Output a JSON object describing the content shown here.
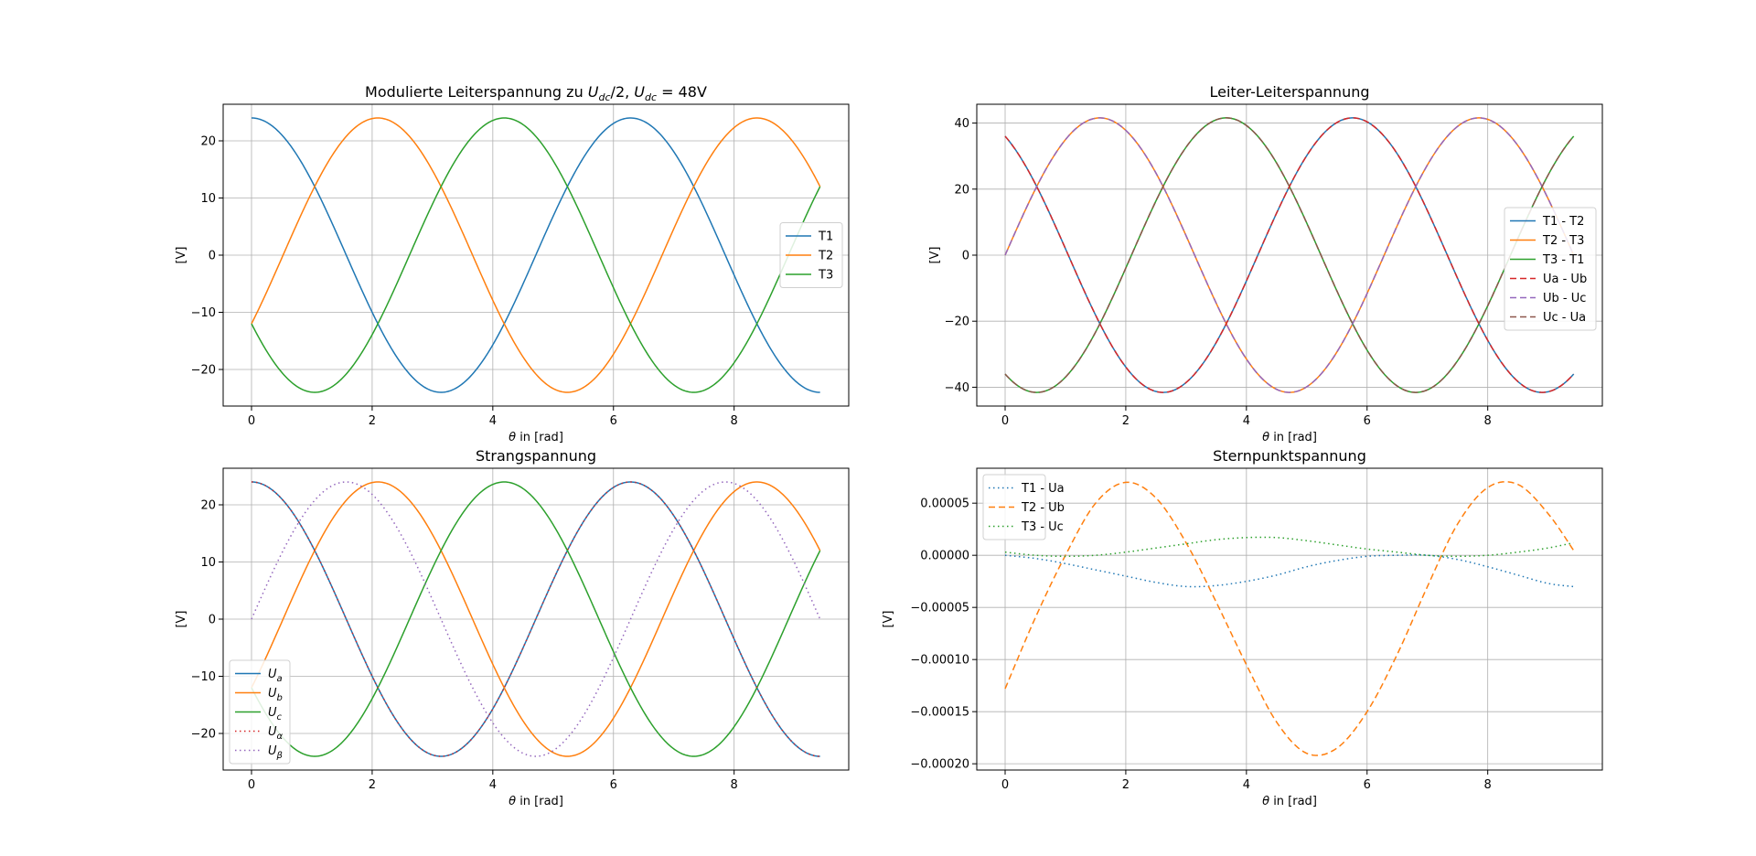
{
  "chart_data": [
    {
      "type": "line",
      "title": "Modulierte Leiterspannung zu U_dc/2, U_dc = 48V",
      "title_parts": {
        "pre": "Modulierte Leiterspannung zu ",
        "u1": "U",
        "u1_sub": "dc",
        "mid": "/2, ",
        "u2": "U",
        "u2_sub": "dc",
        "post": " = 48V"
      },
      "xlabel": {
        "theta": "θ",
        "rest": " in [rad]"
      },
      "ylabel": "[V]",
      "xlim": [
        -0.47,
        9.9
      ],
      "ylim": [
        -26.4,
        26.4
      ],
      "xticks": [
        0,
        2,
        4,
        6,
        8
      ],
      "yticks": [
        -20,
        -10,
        0,
        10,
        20
      ],
      "xtick_labels": [
        "0",
        "2",
        "4",
        "6",
        "8"
      ],
      "ytick_labels": [
        "−20",
        "−10",
        "0",
        "10",
        "20"
      ],
      "grid": true,
      "legend_position": "right",
      "series": [
        {
          "name": "T1",
          "color": "#1f77b4",
          "style": "solid",
          "width": 1.5,
          "amplitude": 24,
          "phase": 0
        },
        {
          "name": "T2",
          "color": "#ff7f0e",
          "style": "solid",
          "width": 1.5,
          "amplitude": 24,
          "phase": -2.094
        },
        {
          "name": "T3",
          "color": "#2ca02c",
          "style": "solid",
          "width": 1.5,
          "amplitude": 24,
          "phase": 2.094
        }
      ]
    },
    {
      "type": "line",
      "title": "Leiter-Leiterspannung",
      "xlabel": {
        "theta": "θ",
        "rest": " in [rad]"
      },
      "ylabel": "[V]",
      "xlim": [
        -0.47,
        9.9
      ],
      "ylim": [
        -45.7,
        45.7
      ],
      "xticks": [
        0,
        2,
        4,
        6,
        8
      ],
      "yticks": [
        -40,
        -20,
        0,
        20,
        40
      ],
      "xtick_labels": [
        "0",
        "2",
        "4",
        "6",
        "8"
      ],
      "ytick_labels": [
        "−40",
        "−20",
        "0",
        "20",
        "40"
      ],
      "grid": true,
      "legend_position": "right",
      "series": [
        {
          "name": "T1 - T2",
          "color": "#1f77b4",
          "style": "solid",
          "width": 1.5,
          "amplitude": 41.57,
          "phase": 0.5236
        },
        {
          "name": "T2 - T3",
          "color": "#ff7f0e",
          "style": "solid",
          "width": 1.5,
          "amplitude": 41.57,
          "phase": -1.5708
        },
        {
          "name": "T3 - T1",
          "color": "#2ca02c",
          "style": "solid",
          "width": 1.5,
          "amplitude": 41.57,
          "phase": 2.618
        },
        {
          "name": "Ua - Ub",
          "color": "#d62728",
          "style": "dashed",
          "width": 1.5,
          "amplitude": 41.57,
          "phase": 0.5236
        },
        {
          "name": "Ub - Uc",
          "color": "#9467bd",
          "style": "dashed",
          "width": 1.5,
          "amplitude": 41.57,
          "phase": -1.5708
        },
        {
          "name": "Uc - Ua",
          "color": "#8c564b",
          "style": "dashed",
          "width": 1.5,
          "amplitude": 41.57,
          "phase": 2.618
        }
      ]
    },
    {
      "type": "line",
      "title": "Strangspannung",
      "xlabel": {
        "theta": "θ",
        "rest": " in [rad]"
      },
      "ylabel": "[V]",
      "xlim": [
        -0.47,
        9.9
      ],
      "ylim": [
        -26.4,
        26.4
      ],
      "xticks": [
        0,
        2,
        4,
        6,
        8
      ],
      "yticks": [
        -20,
        -10,
        0,
        10,
        20
      ],
      "xtick_labels": [
        "0",
        "2",
        "4",
        "6",
        "8"
      ],
      "ytick_labels": [
        "−20",
        "−10",
        "0",
        "10",
        "20"
      ],
      "grid": true,
      "legend_position": "lower-left",
      "series": [
        {
          "name": "U_a",
          "label_main": "U",
          "label_sub": "a",
          "color": "#1f77b4",
          "style": "solid",
          "width": 1.5,
          "amplitude": 24,
          "phase": 0
        },
        {
          "name": "U_b",
          "label_main": "U",
          "label_sub": "b",
          "color": "#ff7f0e",
          "style": "solid",
          "width": 1.5,
          "amplitude": 24,
          "phase": -2.094
        },
        {
          "name": "U_c",
          "label_main": "U",
          "label_sub": "c",
          "color": "#2ca02c",
          "style": "solid",
          "width": 1.5,
          "amplitude": 24,
          "phase": 2.094
        },
        {
          "name": "U_α",
          "label_main": "U",
          "label_sub": "α",
          "color": "#d62728",
          "style": "dotted",
          "width": 1.5,
          "amplitude": 24,
          "phase": 0
        },
        {
          "name": "U_β",
          "label_main": "U",
          "label_sub": "β",
          "color": "#9467bd",
          "style": "dotted",
          "width": 1.5,
          "amplitude": 24,
          "phase": -1.5708
        }
      ]
    },
    {
      "type": "line",
      "title": "Sternpunktspannung",
      "xlabel": {
        "theta": "θ",
        "rest": " in [rad]"
      },
      "ylabel": "[V]",
      "xlim": [
        -0.47,
        9.9
      ],
      "ylim": [
        -0.000206,
        8.35e-05
      ],
      "xticks": [
        0,
        2,
        4,
        6,
        8
      ],
      "yticks": [
        -0.0002,
        -0.00015,
        -0.0001,
        -5e-05,
        0,
        5e-05
      ],
      "xtick_labels": [
        "0",
        "2",
        "4",
        "6",
        "8"
      ],
      "ytick_labels": [
        "−0.00020",
        "−0.00015",
        "−0.00010",
        "−0.00005",
        "0.00000",
        "0.00005"
      ],
      "grid": true,
      "legend_position": "upper-left",
      "series": [
        {
          "name": "T1 - Ua",
          "color": "#1f77b4",
          "style": "dotted",
          "width": 1.5,
          "x": [
            0,
            0.5,
            1,
            1.5,
            2,
            2.5,
            3,
            3.5,
            4,
            4.5,
            5,
            5.5,
            6,
            6.5,
            7,
            7.5,
            8,
            8.5,
            9,
            9.42
          ],
          "y": [
            0.0,
            -3e-06,
            -8e-06,
            -1.4e-05,
            -2e-05,
            -2.6e-05,
            -3e-05,
            -2.9e-05,
            -2.5e-05,
            -1.9e-05,
            -1.1e-05,
            -5e-06,
            -1e-06,
            0.0,
            0.0,
            -4e-06,
            -1.1e-05,
            -1.9e-05,
            -2.7e-05,
            -3e-05
          ]
        },
        {
          "name": "T2 - Ub",
          "color": "#ff7f0e",
          "style": "dashed",
          "width": 1.5,
          "x": [
            0,
            0.5,
            1,
            1.5,
            2,
            2.5,
            3,
            3.5,
            4,
            4.5,
            5,
            5.5,
            6,
            6.5,
            7,
            7.5,
            8,
            8.5,
            9,
            9.42
          ],
          "y": [
            -0.000128,
            -6e-05,
            0.0,
            5e-05,
            7e-05,
            5.5e-05,
            1.2e-05,
            -4.5e-05,
            -0.000105,
            -0.00016,
            -0.00019,
            -0.000185,
            -0.00015,
            -9.5e-05,
            -3e-05,
            3e-05,
            6.5e-05,
            6.8e-05,
            4e-05,
            5e-06
          ]
        },
        {
          "name": "T3 - Uc",
          "color": "#2ca02c",
          "style": "dotted",
          "width": 1.5,
          "x": [
            0,
            0.5,
            1,
            1.5,
            2,
            2.5,
            3,
            3.5,
            4,
            4.5,
            5,
            5.5,
            6,
            6.5,
            7,
            7.5,
            8,
            8.5,
            9,
            9.42
          ],
          "y": [
            3e-06,
            0.0,
            -1e-06,
            0.0,
            3e-06,
            7e-06,
            1.1e-05,
            1.5e-05,
            1.7e-05,
            1.7e-05,
            1.4e-05,
            1e-05,
            6e-06,
            3e-06,
            0.0,
            -1e-06,
            0.0,
            3e-06,
            7e-06,
            1.2e-05
          ]
        }
      ]
    }
  ]
}
